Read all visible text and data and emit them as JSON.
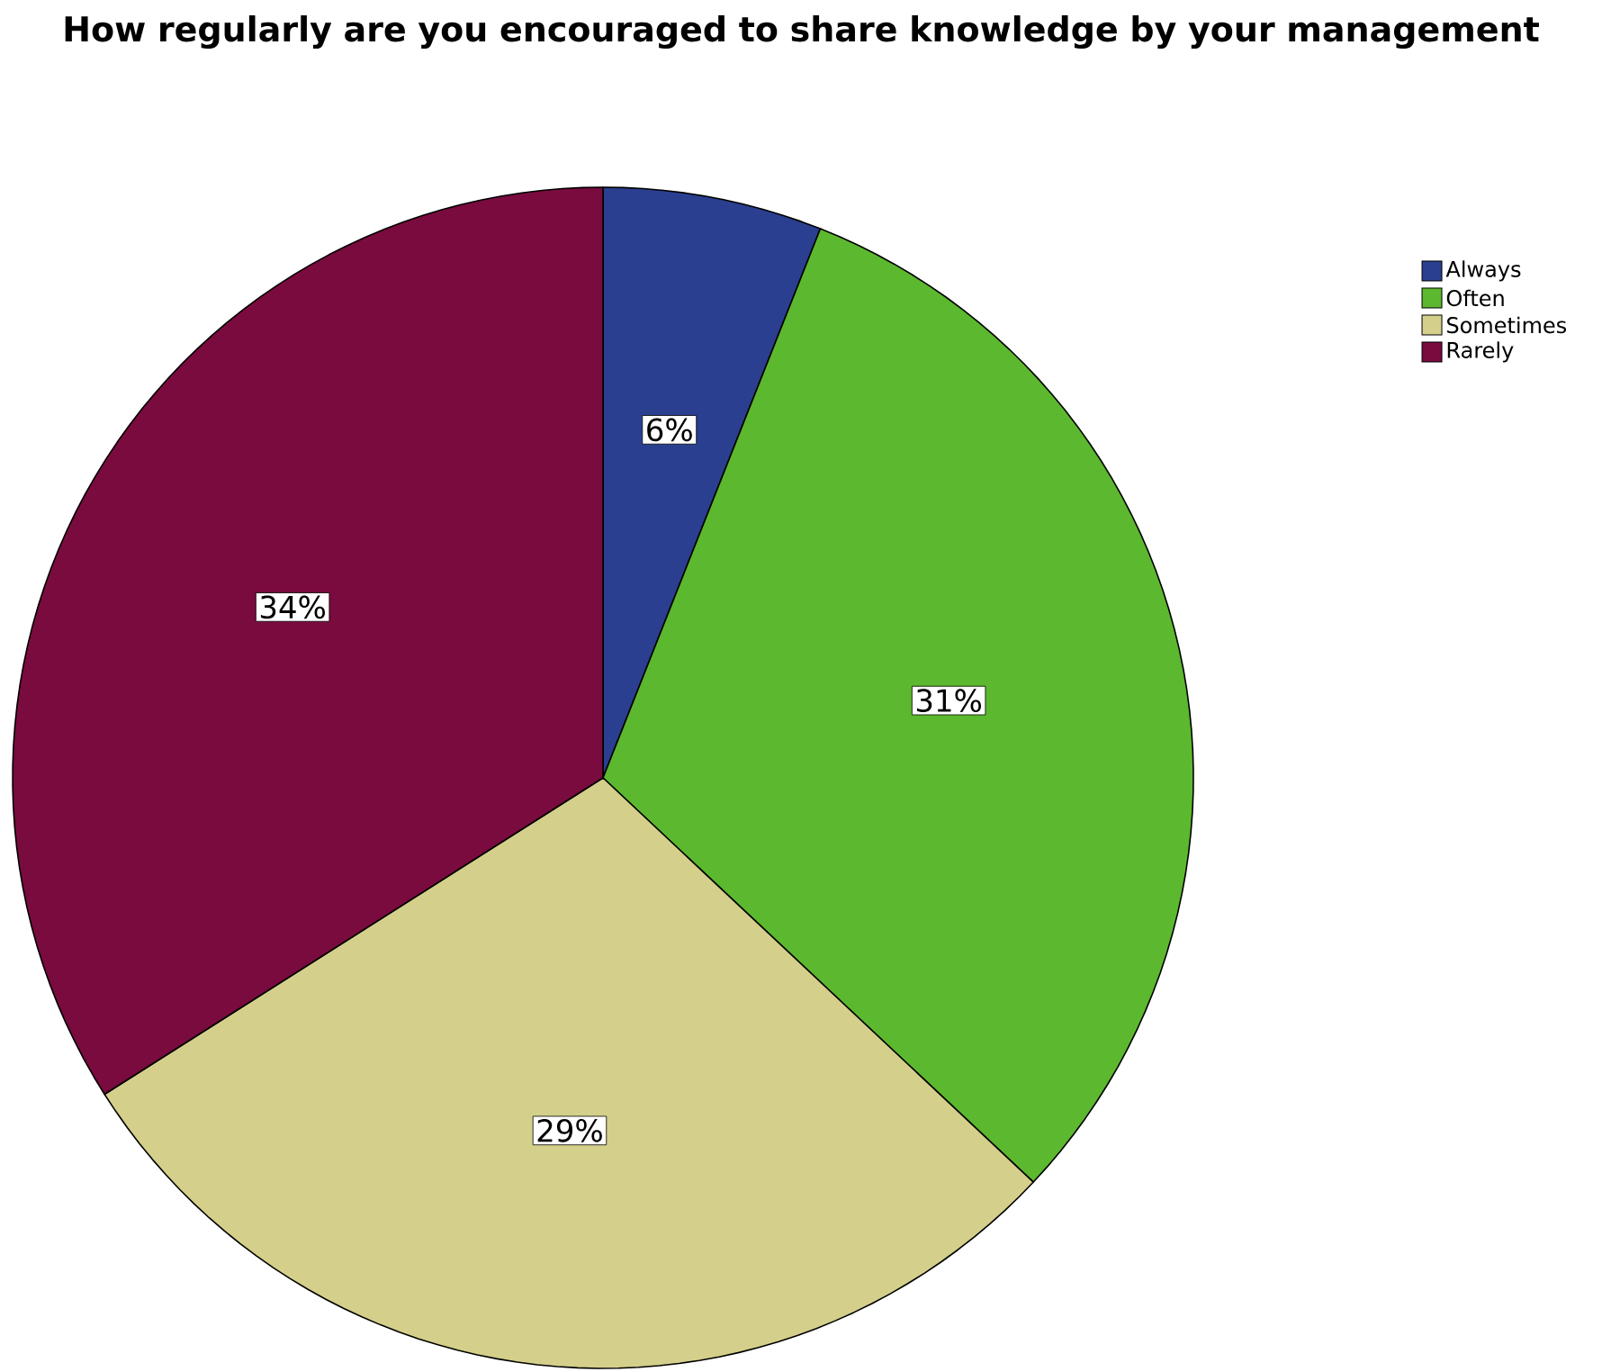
{
  "chart_data": {
    "type": "pie",
    "title": "How regularly are you encouraged to share knowledge by your management",
    "categories": [
      "Always",
      "Often",
      "Sometimes",
      "Rarely"
    ],
    "values": [
      6,
      31,
      29,
      34
    ],
    "colors": [
      "#2a3f8f",
      "#5cb82e",
      "#d4cf8a",
      "#7a0b3e"
    ],
    "value_labels": [
      "6%",
      "31%",
      "29%",
      "34%"
    ],
    "legend": "top right"
  }
}
